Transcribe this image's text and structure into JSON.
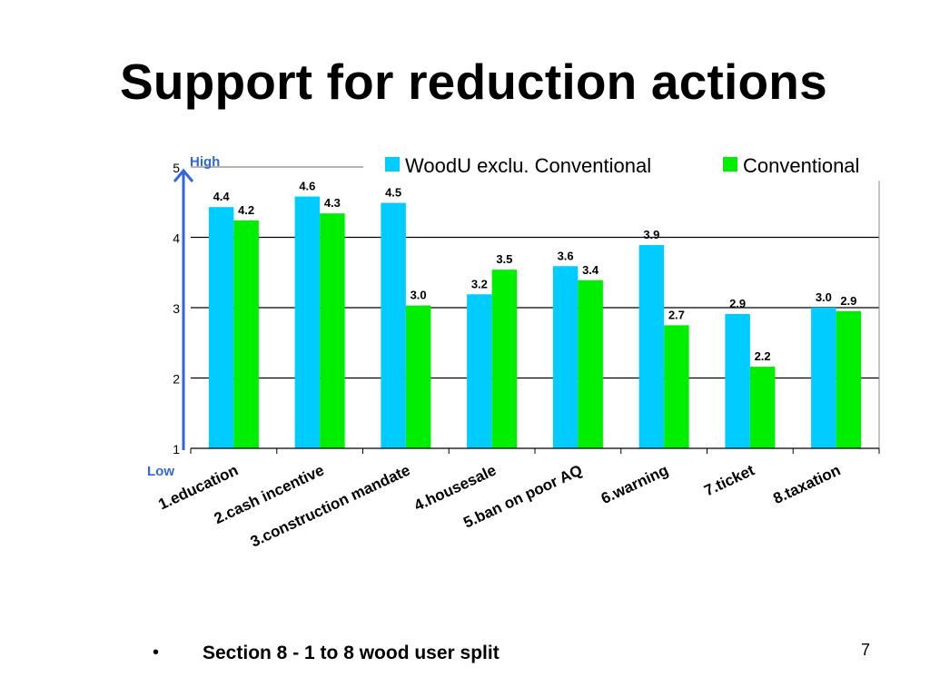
{
  "slide": {
    "title": "Support for reduction actions",
    "bullet_symbol": "•",
    "bullet_text": "Section 8 - 1 to 8 wood user split",
    "page_number": "7"
  },
  "chart_data": {
    "type": "bar",
    "title": "",
    "xlabel": "",
    "ylabel": "",
    "ylim": [
      1,
      5
    ],
    "yticks": [
      1,
      2,
      3,
      4,
      5
    ],
    "grid": true,
    "legend_position": "top",
    "categories": [
      "1.education",
      "2.cash incentive",
      "3.construction mandate",
      "4.housesale",
      "5.ban on poor AQ",
      "6.warning",
      "7.ticket",
      "8.taxation"
    ],
    "series": [
      {
        "name": "WoodU exclu. Conventional",
        "color": "#00ccff",
        "values": [
          4.43,
          4.58,
          4.49,
          3.19,
          3.59,
          3.89,
          2.91,
          3.0
        ],
        "labels": [
          "4.4",
          "4.6",
          "4.5",
          "3.2",
          "3.6",
          "3.9",
          "2.9",
          "3.0"
        ]
      },
      {
        "name": "Conventional",
        "color": "#00ee00",
        "values": [
          4.24,
          4.34,
          3.03,
          3.54,
          3.39,
          2.75,
          2.16,
          2.95
        ],
        "labels": [
          "4.2",
          "4.3",
          "3.0",
          "3.5",
          "3.4",
          "2.7",
          "2.2",
          "2.9"
        ]
      }
    ],
    "annotations": {
      "high": "High",
      "low": "Low",
      "arrow_color": "#3366dd"
    }
  }
}
